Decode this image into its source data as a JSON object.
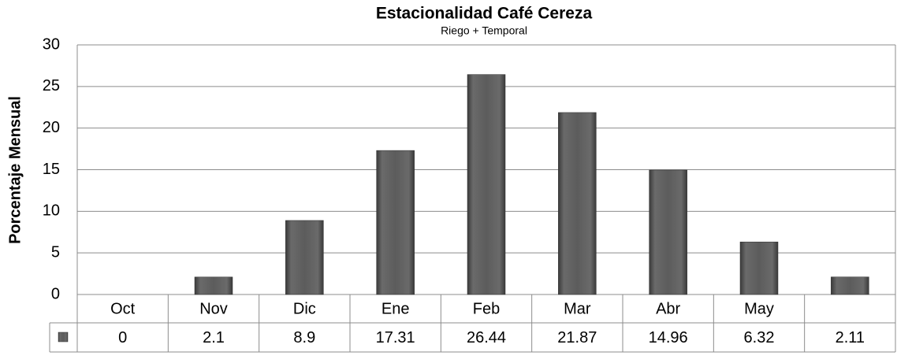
{
  "chart_data": {
    "type": "bar",
    "title": "Estacionalidad Café Cereza",
    "subtitle": "Riego + Temporal",
    "y_label": "Porcentaje Mensual",
    "categories": [
      "Oct",
      "Nov",
      "Dic",
      "Ene",
      "Feb",
      "Mar",
      "Abr",
      "May",
      null
    ],
    "values": [
      0,
      2.1,
      8.9,
      17.31,
      26.44,
      21.87,
      14.96,
      6.32,
      2.11
    ],
    "color": "#5a5a5a",
    "ylim": [
      0,
      30
    ],
    "yticks": [
      0,
      5,
      10,
      15,
      20,
      25,
      30
    ],
    "grid": true,
    "data_table": true
  }
}
